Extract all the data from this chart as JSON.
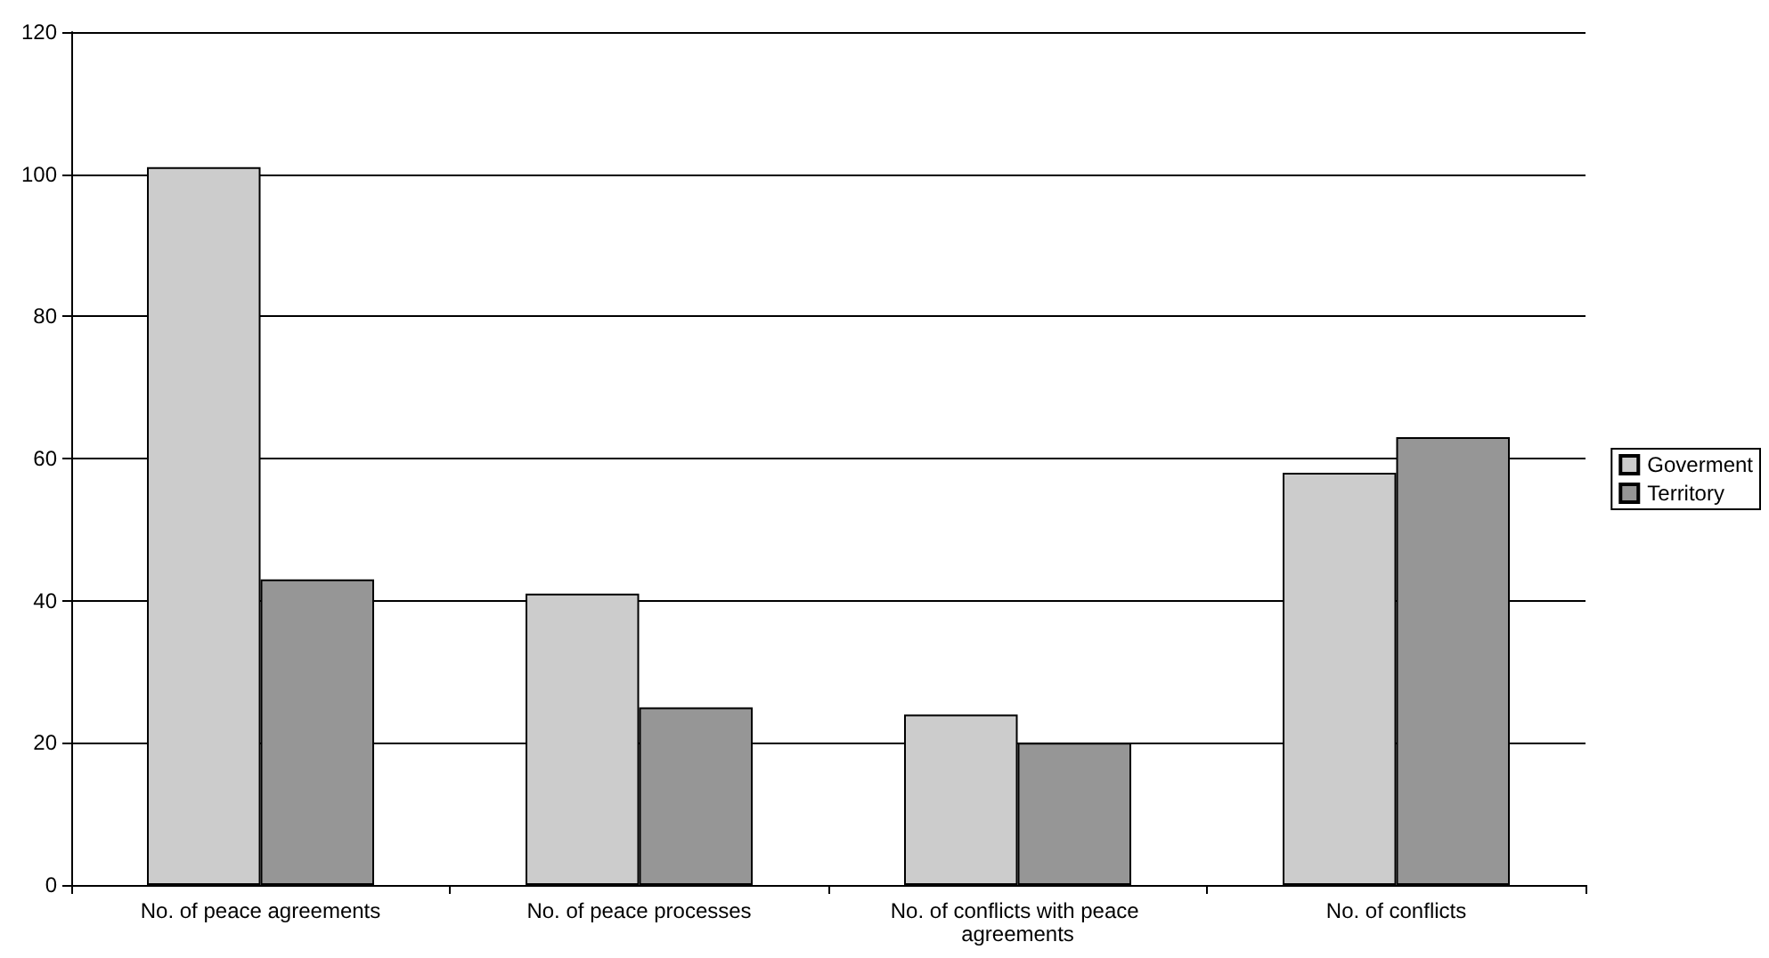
{
  "chart_data": {
    "type": "bar",
    "categories": [
      "No. of peace agreements",
      "No. of peace processes",
      "No. of conflicts with peace agreements",
      "No. of conflicts"
    ],
    "series": [
      {
        "name": "Goverment",
        "color": "#cccccc",
        "values": [
          101,
          41,
          24,
          58
        ]
      },
      {
        "name": "Territory",
        "color": "#969696",
        "values": [
          43,
          25,
          20,
          63
        ]
      }
    ],
    "ylim": [
      0,
      120
    ],
    "yticks": [
      0,
      20,
      40,
      60,
      80,
      100,
      120
    ],
    "grid": "y",
    "legend": "right"
  }
}
